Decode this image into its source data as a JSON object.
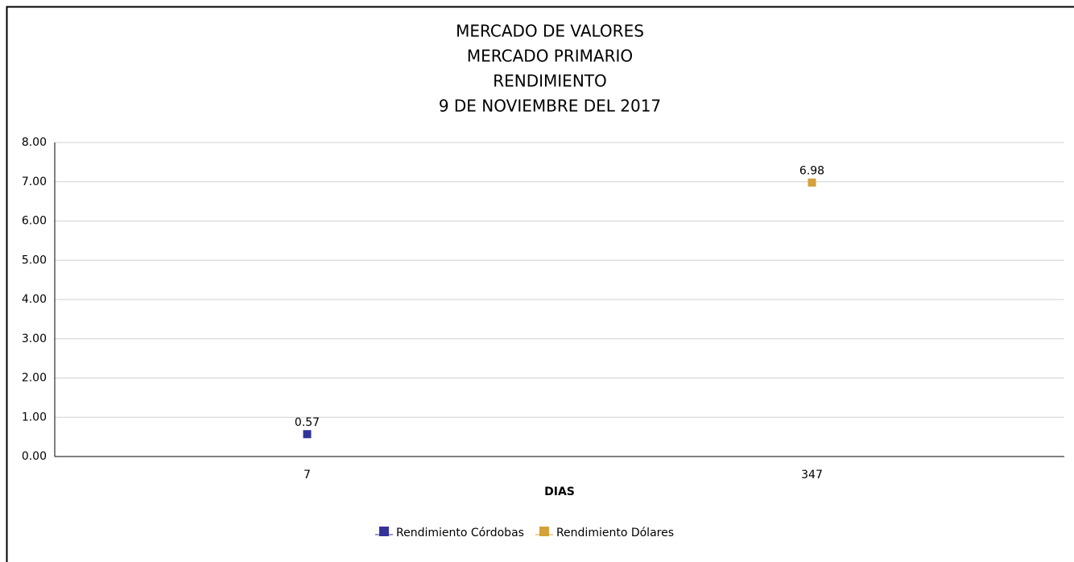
{
  "chart_data": {
    "type": "line",
    "title": [
      "MERCADO DE VALORES",
      "MERCADO PRIMARIO",
      "RENDIMIENTO",
      "9 DE NOVIEMBRE DEL 2017"
    ],
    "x_label": "DIAS",
    "categories": [
      "7",
      "347"
    ],
    "series": [
      {
        "name": "Rendimiento Córdobas",
        "color": "#333399",
        "values": [
          0.57,
          null
        ]
      },
      {
        "name": "Rendimiento Dólares",
        "color": "#d4a13a",
        "values": [
          null,
          6.98
        ]
      }
    ],
    "ylim": [
      0,
      8
    ],
    "yticks": [
      {
        "value": 0,
        "label": "0.00"
      },
      {
        "value": 1,
        "label": "1.00"
      },
      {
        "value": 2,
        "label": "2.00"
      },
      {
        "value": 3,
        "label": "3.00"
      },
      {
        "value": 4,
        "label": "4.00"
      },
      {
        "value": 5,
        "label": "5.00"
      },
      {
        "value": 6,
        "label": "6.00"
      },
      {
        "value": 7,
        "label": "7.00"
      },
      {
        "value": 8,
        "label": "8.00"
      }
    ],
    "grid": true,
    "legend": "bottom"
  }
}
